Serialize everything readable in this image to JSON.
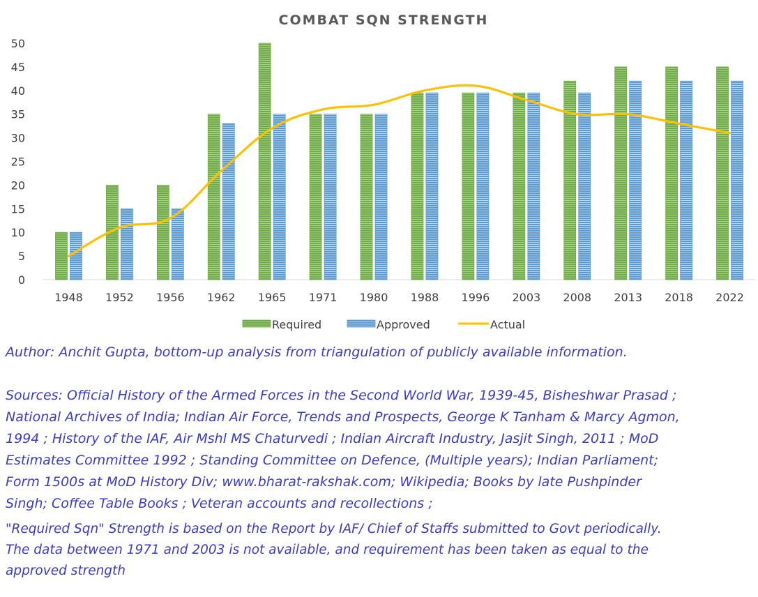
{
  "chart_data": {
    "type": "bar",
    "title": "COMBAT SQN STRENGTH",
    "categories": [
      "1948",
      "1952",
      "1956",
      "1962",
      "1965",
      "1971",
      "1980",
      "1988",
      "1996",
      "2003",
      "2008",
      "2013",
      "2018",
      "2022"
    ],
    "series": [
      {
        "name": "Required",
        "kind": "bar",
        "color": "#70ad47",
        "values": [
          10,
          20,
          20,
          35,
          50,
          35,
          35,
          39.5,
          39.5,
          39.5,
          42,
          45,
          45,
          45
        ]
      },
      {
        "name": "Approved",
        "kind": "bar",
        "color": "#5b9bd5",
        "values": [
          10,
          15,
          15,
          33,
          35,
          35,
          35,
          39.5,
          39.5,
          39.5,
          39.5,
          42,
          42,
          42
        ]
      },
      {
        "name": "Actual",
        "kind": "line",
        "color": "#ffc000",
        "values": [
          5,
          11,
          13,
          23,
          32,
          36,
          37,
          40,
          41,
          38,
          35,
          35,
          33,
          31
        ]
      }
    ],
    "ylim": [
      0,
      50
    ],
    "yticks": [
      0,
      5,
      10,
      15,
      20,
      25,
      30,
      35,
      40,
      45,
      50
    ],
    "legend_position": "bottom",
    "gridlines": false
  },
  "notes": {
    "author": "Author: Anchit Gupta, bottom-up analysis from triangulation of publicly available information.",
    "sources_lines": [
      "Sources: Official History of the Armed Forces in the Second World War, 1939-45, Bisheshwar Prasad ;",
      "National Archives of India; Indian Air Force, Trends and Prospects, George K Tanham & Marcy Agmon,",
      "1994 ; History of the IAF, Air Mshl MS Chaturvedi ; Indian Aircraft Industry, Jasjit Singh, 2011 ; MoD",
      "Estimates Committee 1992 ;  Standing Committee on Defence, (Multiple years); Indian Parliament;",
      "Form 1500s at MoD History Div; www.bharat-rakshak.com; Wikipedia; Books by late Pushpinder",
      "Singh; Coffee Table Books ; Veteran accounts and recollections ;"
    ],
    "required_lines": [
      "\"Required Sqn\" Strength is based on the Report by IAF/ Chief of Staffs submitted to Govt periodically.",
      "The data between 1971 and 2003 is not available, and requirement has been taken as equal to the",
      "approved strength"
    ]
  }
}
